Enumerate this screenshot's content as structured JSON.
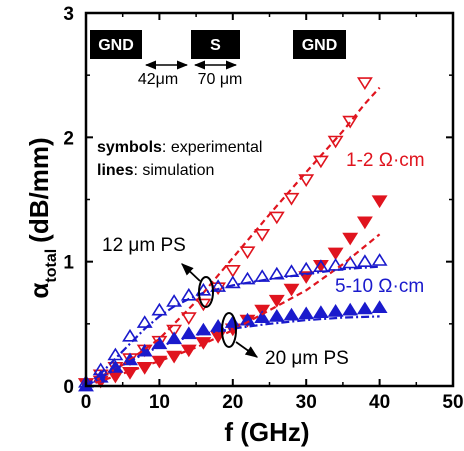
{
  "chart_data": {
    "type": "scatter",
    "title": "",
    "xlabel": "f (GHz)",
    "ylabel": {
      "main": "α",
      "sub": "total",
      "rest": "(dB/mm)"
    },
    "xlim": [
      0,
      50
    ],
    "ylim": [
      0,
      3
    ],
    "xticks": [
      "0",
      "10",
      "20",
      "30",
      "40",
      "50"
    ],
    "yticks": [
      "0",
      "1",
      "2",
      "3"
    ],
    "grid": false,
    "colors": {
      "red": "#e0141e",
      "blue": "#1a1acc",
      "black": "#000000"
    },
    "schematic": {
      "pads": [
        "GND",
        "S",
        "GND"
      ],
      "dims": [
        "42μm",
        "70 μm"
      ]
    },
    "legend_text": {
      "symbols_key": "symbols",
      "symbols_val": ": experimental",
      "lines_key": "lines",
      "lines_val": ": simulation"
    },
    "annotations": {
      "red_label": "1-2 Ω·cm",
      "blue_label": "5-10 Ω·cm",
      "ps12": "12 μm PS",
      "ps20": "20 μm PS"
    },
    "series": [
      {
        "name": "1-2 Ω·cm, 12 μm PS",
        "kind": "experimental",
        "marker": "triangle-down-open",
        "color": "red",
        "x": [
          0,
          2,
          4,
          6,
          8,
          10,
          12,
          14,
          16,
          18,
          20,
          22,
          24,
          26,
          28,
          30,
          32,
          34,
          36,
          38
        ],
        "y": [
          0.02,
          0.09,
          0.15,
          0.22,
          0.29,
          0.36,
          0.45,
          0.55,
          0.66,
          0.79,
          0.93,
          1.08,
          1.22,
          1.36,
          1.51,
          1.66,
          1.81,
          1.97,
          2.13,
          2.44
        ]
      },
      {
        "name": "1-2 Ω·cm, 20 μm PS",
        "kind": "experimental",
        "marker": "triangle-down-filled",
        "color": "red",
        "x": [
          0,
          2,
          4,
          6,
          8,
          10,
          12,
          14,
          16,
          18,
          20,
          22,
          24,
          26,
          28,
          30,
          32,
          34,
          36,
          38,
          40
        ],
        "y": [
          0.02,
          0.04,
          0.08,
          0.11,
          0.15,
          0.2,
          0.24,
          0.29,
          0.35,
          0.4,
          0.46,
          0.53,
          0.61,
          0.69,
          0.78,
          0.88,
          0.97,
          1.07,
          1.19,
          1.32,
          1.49
        ]
      },
      {
        "name": "5-10 Ω·cm, 12 μm PS",
        "kind": "experimental",
        "marker": "triangle-up-open",
        "color": "blue",
        "x": [
          0,
          2,
          4,
          6,
          8,
          10,
          12,
          14,
          16,
          18,
          20,
          22,
          24,
          26,
          28,
          30,
          32,
          34,
          36,
          38,
          40
        ],
        "y": [
          0.03,
          0.13,
          0.25,
          0.4,
          0.51,
          0.61,
          0.68,
          0.73,
          0.77,
          0.8,
          0.83,
          0.86,
          0.88,
          0.9,
          0.92,
          0.94,
          0.96,
          0.97,
          0.99,
          1.0,
          1.01
        ]
      },
      {
        "name": "5-10 Ω·cm, 20 μm PS",
        "kind": "experimental",
        "marker": "triangle-up-filled",
        "color": "blue",
        "x": [
          0,
          2,
          4,
          6,
          8,
          10,
          12,
          14,
          16,
          18,
          20,
          22,
          24,
          26,
          28,
          30,
          32,
          34,
          36,
          38,
          40
        ],
        "y": [
          0.0,
          0.07,
          0.15,
          0.21,
          0.28,
          0.34,
          0.38,
          0.42,
          0.45,
          0.48,
          0.51,
          0.53,
          0.55,
          0.56,
          0.57,
          0.58,
          0.59,
          0.6,
          0.61,
          0.62,
          0.63
        ]
      },
      {
        "name": "1-2 Ω·cm, 12 μm PS, simulation",
        "kind": "simulation",
        "dash": "dashed",
        "color": "red",
        "x": [
          0,
          5,
          10,
          15,
          20,
          25,
          30,
          35,
          38,
          40
        ],
        "y": [
          0.0,
          0.17,
          0.38,
          0.68,
          1.03,
          1.38,
          1.72,
          2.05,
          2.27,
          2.4
        ]
      },
      {
        "name": "1-2 Ω·cm, 20 μm PS, simulation",
        "kind": "simulation",
        "dash": "dashed",
        "color": "red",
        "x": [
          0,
          5,
          10,
          15,
          20,
          25,
          30,
          35,
          40
        ],
        "y": [
          0.0,
          0.1,
          0.2,
          0.31,
          0.45,
          0.61,
          0.77,
          0.98,
          1.22
        ]
      },
      {
        "name": "5-10 Ω·cm, 12 μm PS, simulation",
        "kind": "simulation",
        "dash": "dashdot",
        "color": "blue",
        "x": [
          0,
          2,
          4,
          6,
          8,
          10,
          12,
          14,
          16,
          20,
          25,
          30,
          35,
          40
        ],
        "y": [
          0.0,
          0.1,
          0.22,
          0.34,
          0.46,
          0.56,
          0.64,
          0.7,
          0.75,
          0.81,
          0.86,
          0.9,
          0.94,
          0.96
        ]
      },
      {
        "name": "5-10 Ω·cm, 20 μm PS, simulation",
        "kind": "simulation",
        "dash": "dashdot",
        "color": "blue",
        "x": [
          0,
          3,
          6,
          9,
          12,
          15,
          18,
          21,
          25,
          30,
          35,
          40
        ],
        "y": [
          0.0,
          0.1,
          0.2,
          0.29,
          0.36,
          0.41,
          0.44,
          0.47,
          0.5,
          0.53,
          0.55,
          0.56
        ]
      }
    ]
  }
}
